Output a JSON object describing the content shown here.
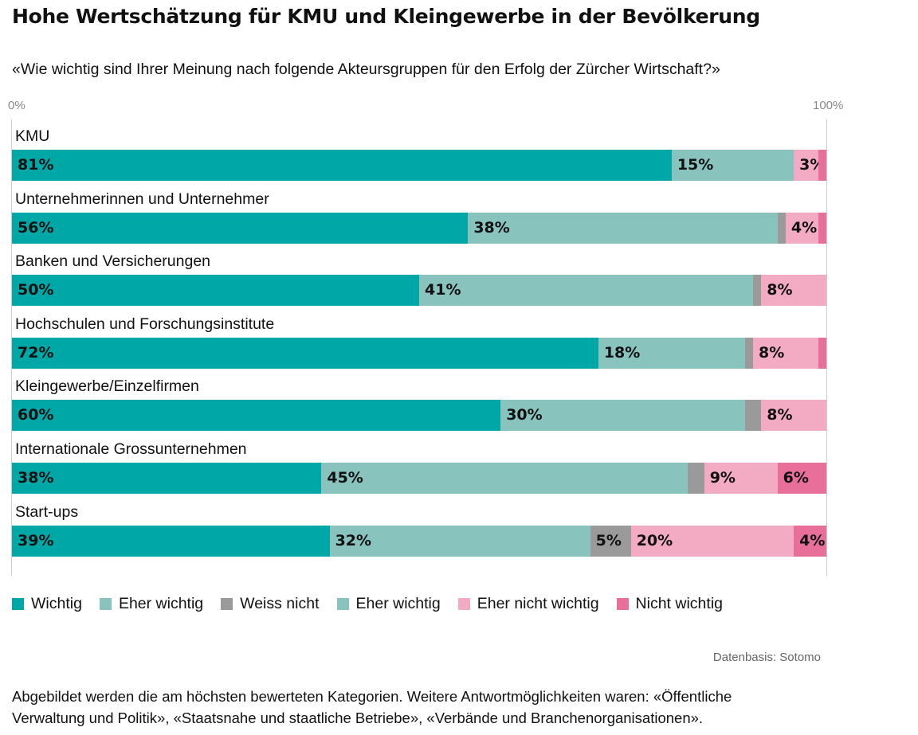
{
  "chart_data": {
    "type": "bar",
    "orientation": "horizontal",
    "stacked": true,
    "title": "Hohe Wertschätzung für KMU und Kleingewerbe in der Bevölkerung",
    "subtitle": "«Wie wichtig sind Ihrer Meinung nach folgende Akteursgruppen für den Erfolg der Zürcher Wirtschaft?»",
    "xlim": [
      0,
      100
    ],
    "tick_labels": [
      "0%",
      "100%"
    ],
    "categories": [
      "KMU",
      "Unternehmerinnen und Unternehmer",
      "Banken und Versicherungen",
      "Hochschulen und Forschungsinstitute",
      "Kleingewerbe/Einzelfirmen",
      "Internationale Grossunternehmen",
      "Start-ups"
    ],
    "series": [
      {
        "name": "Wichtig",
        "color": "#00a7a7",
        "values": [
          81,
          56,
          50,
          72,
          60,
          38,
          39
        ],
        "labels": [
          "81%",
          "56%",
          "50%",
          "72%",
          "60%",
          "38%",
          "39%"
        ]
      },
      {
        "name": "Eher wichtig",
        "color": "#88c3be",
        "values": [
          15,
          38,
          41,
          18,
          30,
          45,
          32
        ],
        "labels": [
          "15%",
          "38%",
          "41%",
          "18%",
          "30%",
          "45%",
          "32%"
        ]
      },
      {
        "name": "Weiss nicht",
        "color": "#9a9a9a",
        "values": [
          0,
          1,
          1,
          1,
          2,
          2,
          5
        ],
        "labels": [
          null,
          null,
          null,
          null,
          null,
          null,
          "5%"
        ]
      },
      {
        "name": "Eher nicht wichtig",
        "color": "#f3abc4",
        "values": [
          3,
          4,
          8,
          8,
          8,
          9,
          20
        ],
        "labels": [
          "3%",
          "4%",
          "8%",
          "8%",
          "8%",
          "9%",
          "20%"
        ]
      },
      {
        "name": "Nicht wichtig",
        "color": "#e96f9b",
        "values": [
          1,
          1,
          0,
          1,
          0,
          6,
          4
        ],
        "labels": [
          null,
          null,
          null,
          null,
          null,
          "6%",
          "4%"
        ]
      }
    ],
    "legend": [
      {
        "label": "Wichtig",
        "color": "#00a7a7"
      },
      {
        "label": "Eher wichtig",
        "color": "#88c3be"
      },
      {
        "label": "Weiss nicht",
        "color": "#9a9a9a"
      },
      {
        "label": "Eher wichtig",
        "color": "#88c3be"
      },
      {
        "label": "Eher nicht wichtig",
        "color": "#f3abc4"
      },
      {
        "label": "Nicht wichtig",
        "color": "#e96f9b"
      }
    ],
    "legend_position": "bottom",
    "grid": false
  },
  "source": "Datenbasis: Sotomo",
  "note_line1": "Abgebildet werden die am höchsten bewerteten Kategorien. Weitere Antwortmöglichkeiten waren: «Öffentliche",
  "note_line2": "Verwaltung und Politik», «Staatsnahe und staatliche Betriebe», «Verbände und Branchenorganisationen»."
}
